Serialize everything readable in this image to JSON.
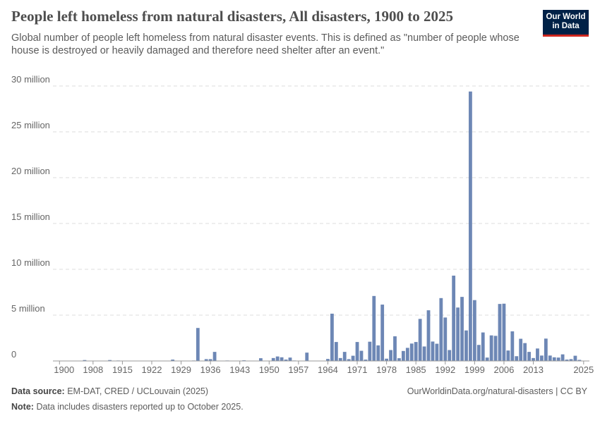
{
  "header": {
    "title": "People left homeless from natural disasters, All disasters, 1900 to 2025",
    "subtitle": "Global number of people left homeless from natural disaster events. This is defined as \"number of people whose house is destroyed or heavily damaged and therefore need shelter after an event.\"",
    "logo": "Our World in Data"
  },
  "footer": {
    "source_label": "Data source:",
    "source": "EM-DAT, CRED / UCLouvain (2025)",
    "note_label": "Note:",
    "note": "Data includes disasters reported up to October 2025.",
    "url": "OurWorldinData.org/natural-disasters | CC BY"
  },
  "colors": {
    "bar": "#6d87b5",
    "grid": "#dddddd",
    "brand": "#002147",
    "brand_accent": "#ce261e"
  },
  "chart_data": {
    "type": "bar",
    "title": "People left homeless from natural disasters, All disasters, 1900 to 2025",
    "ylim": [
      0,
      30000000
    ],
    "yticks": [
      0,
      5000000,
      10000000,
      15000000,
      20000000,
      25000000,
      30000000
    ],
    "ytick_labels": [
      "0",
      "5 million",
      "10 million",
      "15 million",
      "20 million",
      "25 million",
      "30 million"
    ],
    "xticks": [
      1900,
      1908,
      1915,
      1922,
      1929,
      1936,
      1943,
      1950,
      1957,
      1964,
      1971,
      1978,
      1985,
      1992,
      1999,
      2006,
      2013,
      2025
    ],
    "grid": "horizontal dashed",
    "points": [
      [
        1906,
        100000
      ],
      [
        1912,
        100000
      ],
      [
        1914,
        50000
      ],
      [
        1927,
        150000
      ],
      [
        1932,
        50000
      ],
      [
        1933,
        3600000
      ],
      [
        1935,
        200000
      ],
      [
        1936,
        200000
      ],
      [
        1937,
        990000
      ],
      [
        1940,
        50000
      ],
      [
        1944,
        70000
      ],
      [
        1948,
        300000
      ],
      [
        1951,
        320000
      ],
      [
        1952,
        490000
      ],
      [
        1953,
        400000
      ],
      [
        1954,
        150000
      ],
      [
        1955,
        370000
      ],
      [
        1956,
        50000
      ],
      [
        1959,
        910000
      ],
      [
        1964,
        220000
      ],
      [
        1965,
        5160000
      ],
      [
        1966,
        2070000
      ],
      [
        1967,
        320000
      ],
      [
        1968,
        990000
      ],
      [
        1969,
        200000
      ],
      [
        1970,
        570000
      ],
      [
        1971,
        2070000
      ],
      [
        1972,
        1110000
      ],
      [
        1973,
        150000
      ],
      [
        1974,
        2100000
      ],
      [
        1975,
        7090000
      ],
      [
        1976,
        1700000
      ],
      [
        1977,
        6150000
      ],
      [
        1978,
        250000
      ],
      [
        1979,
        1190000
      ],
      [
        1980,
        2690000
      ],
      [
        1981,
        300000
      ],
      [
        1982,
        1090000
      ],
      [
        1983,
        1430000
      ],
      [
        1984,
        1900000
      ],
      [
        1985,
        2070000
      ],
      [
        1986,
        4590000
      ],
      [
        1987,
        1580000
      ],
      [
        1988,
        5530000
      ],
      [
        1989,
        2120000
      ],
      [
        1990,
        1880000
      ],
      [
        1991,
        6860000
      ],
      [
        1992,
        4740000
      ],
      [
        1993,
        1190000
      ],
      [
        1994,
        9310000
      ],
      [
        1995,
        5830000
      ],
      [
        1996,
        6990000
      ],
      [
        1997,
        3330000
      ],
      [
        1998,
        29400000
      ],
      [
        1999,
        6640000
      ],
      [
        2000,
        1750000
      ],
      [
        2001,
        3110000
      ],
      [
        2002,
        370000
      ],
      [
        2003,
        2790000
      ],
      [
        2004,
        2740000
      ],
      [
        2005,
        6220000
      ],
      [
        2006,
        6250000
      ],
      [
        2007,
        1140000
      ],
      [
        2008,
        3230000
      ],
      [
        2009,
        520000
      ],
      [
        2010,
        2420000
      ],
      [
        2011,
        1950000
      ],
      [
        2012,
        990000
      ],
      [
        2013,
        320000
      ],
      [
        2014,
        1360000
      ],
      [
        2015,
        590000
      ],
      [
        2016,
        2440000
      ],
      [
        2017,
        590000
      ],
      [
        2018,
        400000
      ],
      [
        2019,
        370000
      ],
      [
        2020,
        720000
      ],
      [
        2021,
        150000
      ],
      [
        2022,
        200000
      ],
      [
        2023,
        570000
      ],
      [
        2024,
        120000
      ]
    ]
  }
}
